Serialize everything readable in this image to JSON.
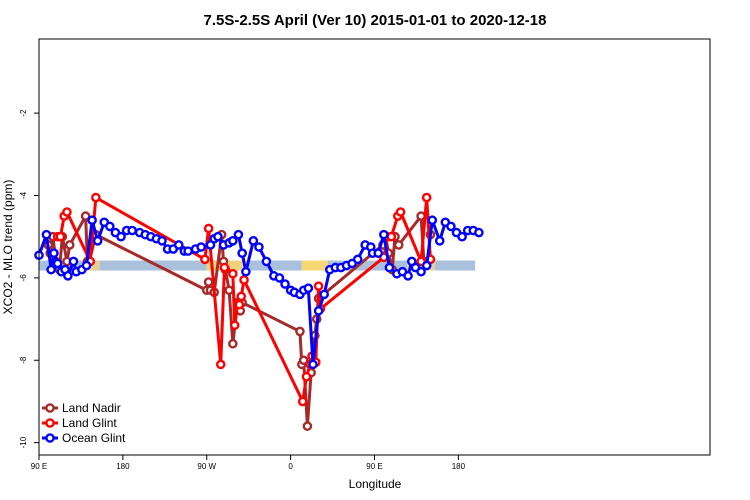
{
  "chart_data": {
    "type": "line",
    "title": "7.5S-2.5S April (Ver 10)   2015-01-01 to 2020-12-18",
    "xlabel": "Longitude",
    "ylabel": "XCO2 - MLO trend (ppm)",
    "xlim": [
      0,
      720
    ],
    "ylim": [
      -10.3,
      -0.2
    ],
    "x_ticks": [
      {
        "value": 0,
        "label": "90 E"
      },
      {
        "value": 90,
        "label": "180"
      },
      {
        "value": 180,
        "label": "90 W"
      },
      {
        "value": 270,
        "label": "0"
      },
      {
        "value": 360,
        "label": "90 E"
      },
      {
        "value": 450,
        "label": "180"
      }
    ],
    "y_ticks": [
      {
        "value": -2,
        "label": "-2"
      },
      {
        "value": -4,
        "label": "-4"
      },
      {
        "value": -6,
        "label": "-6"
      },
      {
        "value": -8,
        "label": "-8"
      },
      {
        "value": -10,
        "label": "-10"
      }
    ],
    "surface_band": {
      "y": -5.7,
      "color_default": "#a9c1dd",
      "segments": [
        {
          "x": [
            0,
            48
          ],
          "color": "#a9c1dd"
        },
        {
          "x": [
            48,
            65
          ],
          "color": "#e8d28f"
        },
        {
          "x": [
            65,
            180
          ],
          "color": "#a9c1dd"
        },
        {
          "x": [
            180,
            225
          ],
          "color": "#f0d27a"
        },
        {
          "x": [
            225,
            282
          ],
          "color": "#a9c1dd"
        },
        {
          "x": [
            282,
            310
          ],
          "color": "#f7d774"
        },
        {
          "x": [
            310,
            395
          ],
          "color": "#a9c1dd"
        },
        {
          "x": [
            395,
            425
          ],
          "color": "#e8d28f"
        },
        {
          "x": [
            425,
            468
          ],
          "color": "#a9c1dd"
        }
      ]
    },
    "legend_position": "bottom-left",
    "series": [
      {
        "name": "Land Nadir",
        "color": "#a52a2a",
        "x": [
          10,
          12,
          15,
          18,
          22,
          25,
          30,
          33,
          50,
          52,
          54,
          61,
          180,
          182,
          184,
          188,
          196,
          198,
          200,
          204,
          208,
          213,
          216,
          218,
          280,
          282,
          284,
          288,
          292,
          296,
          298,
          300,
          369,
          372,
          375,
          379,
          382,
          386,
          410,
          413,
          417,
          420
        ],
        "values": [
          -5.2,
          -5.4,
          -5.0,
          -5.6,
          -5.8,
          -5.0,
          -5.6,
          -5.2,
          -4.5,
          -5.6,
          -5.6,
          -4.95,
          -6.3,
          -6.1,
          -6.3,
          -6.35,
          -4.95,
          -5.6,
          -5.8,
          -6.3,
          -7.6,
          -6.6,
          -6.8,
          -6.6,
          -7.3,
          -8.1,
          -8.0,
          -9.6,
          -8.3,
          -7.4,
          -7.0,
          -6.5,
          -5.2,
          -5.0,
          -5.4,
          -5.8,
          -5.0,
          -5.2,
          -4.5,
          -5.6,
          -5.6,
          -4.95
        ]
      },
      {
        "name": "Land Glint",
        "color": "#ff0000",
        "x": [
          20,
          23,
          27,
          30,
          55,
          61,
          178,
          182,
          195,
          199,
          208,
          210,
          213,
          215,
          217,
          220,
          283,
          287,
          291,
          293,
          297,
          300,
          302,
          370,
          374,
          378,
          385,
          388,
          410,
          416,
          420
        ],
        "values": [
          -5.0,
          -5.0,
          -4.5,
          -4.4,
          -5.6,
          -4.05,
          -5.55,
          -4.8,
          -8.1,
          -5.75,
          -5.9,
          -7.15,
          -6.65,
          -6.65,
          -6.45,
          -6.05,
          -9.0,
          -8.4,
          -8.1,
          -7.9,
          -8.05,
          -6.2,
          -6.75,
          -5.5,
          -5.0,
          -5.0,
          -4.5,
          -4.4,
          -5.6,
          -4.05,
          -5.55
        ]
      },
      {
        "name": "Ocean Glint",
        "color": "#0000ff",
        "x": [
          0,
          8,
          13,
          16,
          20,
          24,
          28,
          31,
          37,
          40,
          46,
          51,
          57,
          63,
          70,
          76,
          82,
          88,
          94,
          100,
          108,
          114,
          120,
          126,
          132,
          138,
          144,
          150,
          156,
          160,
          168,
          174,
          184,
          188,
          192,
          198,
          204,
          208,
          214,
          218,
          222,
          230,
          236,
          244,
          252,
          258,
          264,
          270,
          274,
          280,
          284,
          289,
          294,
          300,
          306,
          312,
          318,
          324,
          330,
          336,
          342,
          350,
          356,
          358,
          364,
          370,
          376,
          384,
          390,
          396,
          400,
          404,
          410,
          416,
          422,
          430,
          436,
          442,
          448,
          454,
          460,
          466,
          472
        ],
        "values": [
          -5.45,
          -4.95,
          -5.8,
          -5.4,
          -5.65,
          -5.85,
          -5.8,
          -5.95,
          -5.6,
          -5.85,
          -5.8,
          -5.7,
          -4.6,
          -5.1,
          -4.65,
          -4.75,
          -4.9,
          -5.0,
          -4.85,
          -4.85,
          -4.9,
          -4.95,
          -5.0,
          -5.05,
          -5.1,
          -5.3,
          -5.3,
          -5.2,
          -5.35,
          -5.35,
          -5.3,
          -5.25,
          -5.2,
          -5.05,
          -5.0,
          -5.2,
          -5.15,
          -5.1,
          -4.95,
          -5.4,
          -5.85,
          -5.1,
          -5.25,
          -5.6,
          -5.95,
          -6.0,
          -6.15,
          -6.3,
          -6.35,
          -6.4,
          -6.3,
          -6.25,
          -8.1,
          -6.8,
          -6.4,
          -5.8,
          -5.75,
          -5.75,
          -5.7,
          -5.65,
          -5.55,
          -5.2,
          -5.25,
          -5.4,
          -5.4,
          -4.95,
          -5.75,
          -5.9,
          -5.85,
          -5.95,
          -5.6,
          -5.75,
          -5.85,
          -5.7,
          -4.6,
          -5.1,
          -4.65,
          -4.75,
          -4.9,
          -5.0,
          -4.85,
          -4.85,
          -4.9
        ]
      }
    ]
  }
}
